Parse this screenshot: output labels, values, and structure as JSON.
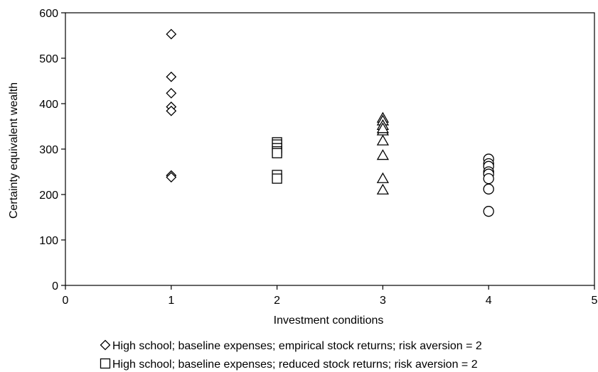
{
  "chart_data": {
    "type": "scatter",
    "xlabel": "Investment conditions",
    "ylabel": "Certainty equivalent wealth",
    "xlim": [
      0,
      5
    ],
    "ylim": [
      0,
      600
    ],
    "x_ticks": [
      "0",
      "1",
      "2",
      "3",
      "4",
      "5"
    ],
    "y_ticks": [
      "0",
      "100",
      "200",
      "300",
      "400",
      "500",
      "600"
    ],
    "grid": false,
    "legend_position": "bottom",
    "series": [
      {
        "name": "High school; baseline expenses; empirical stock returns; risk aversion = 2",
        "marker": "diamond",
        "x": [
          1,
          1,
          1,
          1,
          1,
          1,
          1
        ],
        "y": [
          553,
          459,
          423,
          393,
          384,
          242,
          238
        ]
      },
      {
        "name": "High school; baseline expenses; reduced stock returns; risk aversion = 2",
        "marker": "square",
        "x": [
          2,
          2,
          2,
          2,
          2,
          2,
          2
        ],
        "y": [
          315,
          310,
          302,
          295,
          291,
          243,
          235
        ]
      },
      {
        "name": "",
        "marker": "triangle",
        "x": [
          3,
          3,
          3,
          3,
          3,
          3,
          3,
          3,
          3
        ],
        "y": [
          368,
          362,
          352,
          340,
          318,
          286,
          235,
          210,
          345
        ]
      },
      {
        "name": "",
        "marker": "circle",
        "x": [
          4,
          4,
          4,
          4,
          4,
          4,
          4,
          4
        ],
        "y": [
          278,
          268,
          262,
          250,
          245,
          235,
          212,
          163
        ]
      }
    ]
  }
}
